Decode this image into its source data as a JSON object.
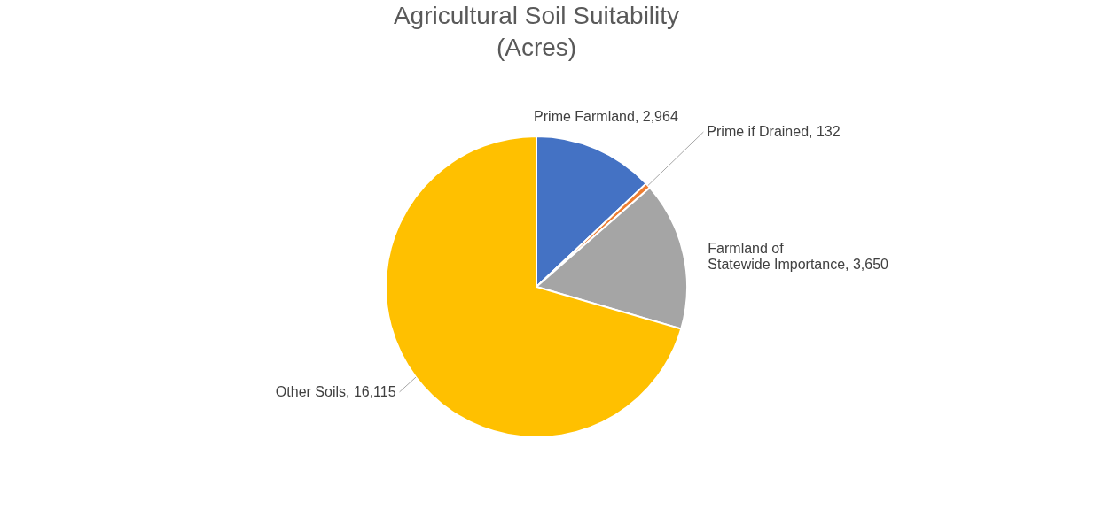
{
  "chart_data": {
    "type": "pie",
    "title": "Agricultural Soil Suitability (Acres)",
    "categories": [
      "Prime Farmland",
      "Prime if Drained",
      "Farmland of Statewide Importance",
      "Other Soils"
    ],
    "values": [
      2964,
      132,
      3650,
      16115
    ],
    "colors": [
      "#4472c4",
      "#ed7d31",
      "#a5a5a5",
      "#ffc000"
    ],
    "value_labels": [
      "2,964",
      "132",
      "3,650",
      "16,115"
    ],
    "legend": false
  }
}
